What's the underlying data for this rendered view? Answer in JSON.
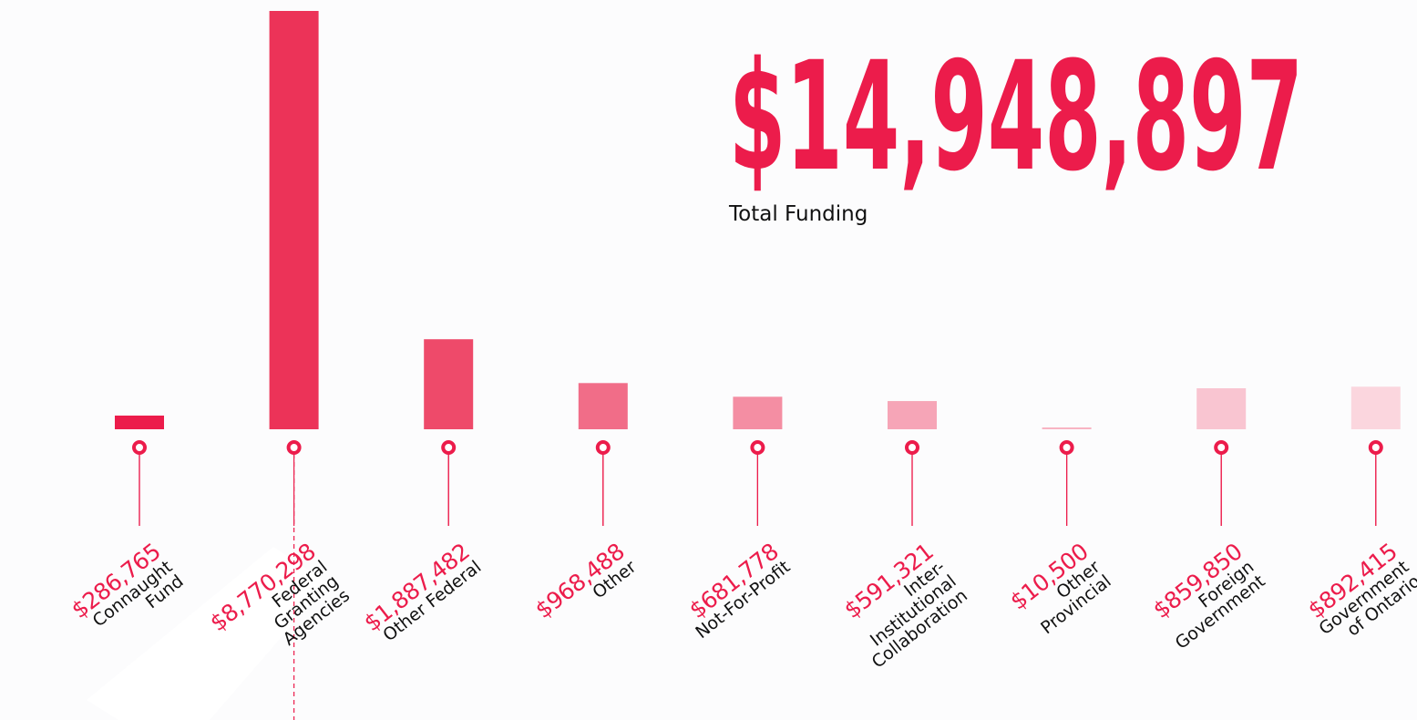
{
  "chart_data": {
    "type": "bar",
    "total": "$14,948,897",
    "total_caption": "Total Funding",
    "categories": [
      "Connaught Fund",
      "Federal Granting Agencies",
      "Other Federal",
      "Other",
      "Not-For-Profit",
      "Inter-Institutional Collaboration",
      "Other Provincial",
      "Foreign Government",
      "Government of Ontario"
    ],
    "values": [
      286765,
      8770298,
      1887482,
      968488,
      681778,
      591321,
      10500,
      859850,
      892415
    ],
    "value_labels": [
      "$286,765",
      "$8,770,298",
      "$1,887,482",
      "$968,488",
      "$681,778",
      "$591,321",
      "$10,500",
      "$859,850",
      "$892,415"
    ],
    "colors": [
      "#ec1c4b",
      "#ec3358",
      "#ee4a6a",
      "#f16d88",
      "#f48ea3",
      "#f6a5b7",
      "#f8b4c3",
      "#f9c5d1",
      "#fbd6de"
    ],
    "accent": "#ec1c4b"
  }
}
